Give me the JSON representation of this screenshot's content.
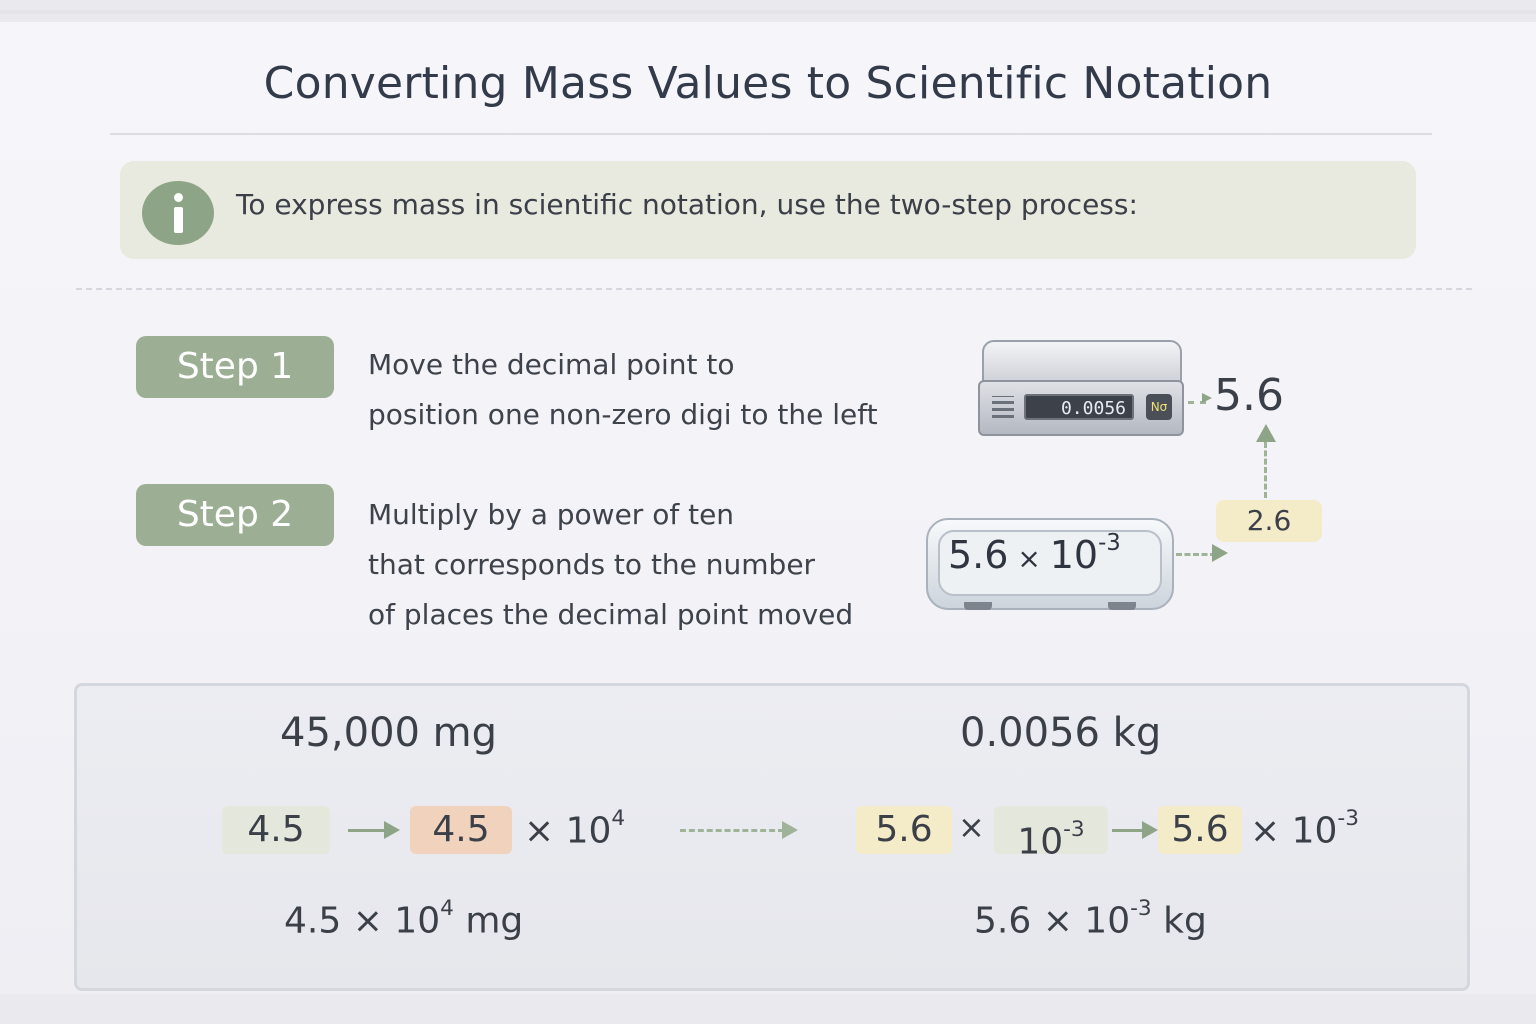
{
  "title": "Converting Mass Values to Scientific Notation",
  "info": {
    "text": "To express mass in scientific notation, use the two-step process:"
  },
  "steps": [
    {
      "label": "Step 1",
      "line1": "Move the decimal point to",
      "line2": "position one non-zero digi to the left"
    },
    {
      "label": "Step 2",
      "line1": "Multiply by a power of ten",
      "line2": "that corresponds to the number",
      "line3": "of places the decimal point moved"
    }
  ],
  "illustration": {
    "scale_display": "0.0056",
    "scale_unit": "Nσ",
    "result_top": "5.6",
    "side_tag": "2.6",
    "scale2_base": "5.6",
    "scale2_times": "×",
    "scale2_power_base": "10",
    "scale2_exp": "-3"
  },
  "examples": {
    "left": {
      "heading": "45,000 mg",
      "chip1": "4.5",
      "chip2": "4.5",
      "times": "× 10",
      "exp": "4",
      "result_base": "4.5 × 10",
      "result_exp": "4",
      "result_unit": " mg"
    },
    "right": {
      "heading": "0.0056 kg",
      "chip1": "5.6",
      "times1": "×",
      "chip2": "10",
      "exp1": "-3",
      "chip3": "5.6",
      "times2": "× 10",
      "exp2": "-3",
      "result_base": "5.6 × 10",
      "result_exp": "-3",
      "result_unit": " kg"
    }
  },
  "colors": {
    "accent_green": "#9caf94",
    "info_bg": "#e8e9df",
    "chip_yellow": "#f4ecc8",
    "chip_orange": "#f1d2bd",
    "chip_green": "#e4e8dc"
  }
}
